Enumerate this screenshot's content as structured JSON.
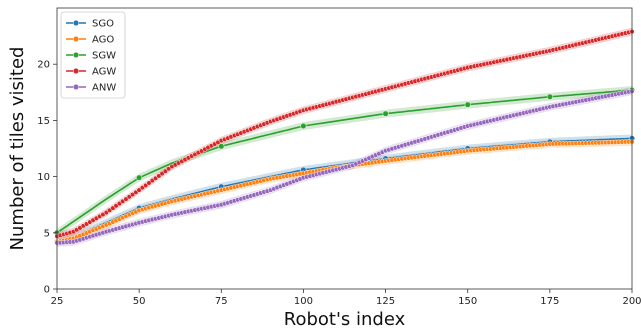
{
  "chart_data": {
    "type": "line",
    "title": "",
    "xlabel": "Robot's index",
    "ylabel": "Number of tiles visited",
    "xlim": [
      25,
      200
    ],
    "ylim": [
      0,
      25
    ],
    "xticks": [
      25,
      50,
      75,
      100,
      125,
      150,
      175,
      200
    ],
    "yticks": [
      0,
      5,
      10,
      15,
      20
    ],
    "grid": false,
    "legend_position": "top-left",
    "series": [
      {
        "name": "SGO",
        "color": "#1f77b4",
        "marker_step": 25,
        "knots": [
          [
            25,
            4.2
          ],
          [
            30,
            4.6
          ],
          [
            40,
            5.9
          ],
          [
            50,
            7.2
          ],
          [
            60,
            8.0
          ],
          [
            75,
            9.1
          ],
          [
            90,
            10.0
          ],
          [
            100,
            10.6
          ],
          [
            125,
            11.6
          ],
          [
            150,
            12.5
          ],
          [
            175,
            13.1
          ],
          [
            200,
            13.4
          ]
        ]
      },
      {
        "name": "AGO",
        "color": "#ff7f0e",
        "marker_step": 1,
        "knots": [
          [
            25,
            4.2
          ],
          [
            30,
            4.5
          ],
          [
            40,
            5.7
          ],
          [
            50,
            7.0
          ],
          [
            60,
            7.8
          ],
          [
            75,
            8.8
          ],
          [
            90,
            9.8
          ],
          [
            100,
            10.3
          ],
          [
            110,
            10.8
          ],
          [
            125,
            11.4
          ],
          [
            150,
            12.3
          ],
          [
            175,
            12.9
          ],
          [
            200,
            13.1
          ]
        ]
      },
      {
        "name": "SGW",
        "color": "#2ca02c",
        "marker_step": 25,
        "knots": [
          [
            25,
            5.0
          ],
          [
            30,
            6.0
          ],
          [
            40,
            8.0
          ],
          [
            50,
            9.9
          ],
          [
            60,
            11.2
          ],
          [
            75,
            12.7
          ],
          [
            100,
            14.5
          ],
          [
            125,
            15.6
          ],
          [
            150,
            16.4
          ],
          [
            175,
            17.1
          ],
          [
            200,
            17.7
          ]
        ]
      },
      {
        "name": "AGW",
        "color": "#d62728",
        "marker_step": 1,
        "knots": [
          [
            25,
            4.7
          ],
          [
            30,
            5.1
          ],
          [
            40,
            6.8
          ],
          [
            50,
            8.8
          ],
          [
            60,
            10.9
          ],
          [
            75,
            13.2
          ],
          [
            90,
            14.9
          ],
          [
            100,
            15.9
          ],
          [
            125,
            17.8
          ],
          [
            150,
            19.7
          ],
          [
            175,
            21.2
          ],
          [
            200,
            22.9
          ]
        ]
      },
      {
        "name": "ANW",
        "color": "#9467bd",
        "marker_step": 1,
        "knots": [
          [
            25,
            4.1
          ],
          [
            30,
            4.2
          ],
          [
            40,
            5.1
          ],
          [
            50,
            5.9
          ],
          [
            60,
            6.6
          ],
          [
            75,
            7.5
          ],
          [
            90,
            8.8
          ],
          [
            100,
            9.9
          ],
          [
            115,
            11.0
          ],
          [
            125,
            12.3
          ],
          [
            150,
            14.5
          ],
          [
            175,
            16.2
          ],
          [
            200,
            17.6
          ]
        ]
      }
    ]
  }
}
